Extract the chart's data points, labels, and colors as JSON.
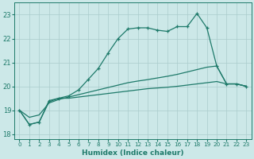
{
  "xlabel": "Humidex (Indice chaleur)",
  "bg_color": "#cce8e8",
  "grid_color": "#aacccc",
  "line_color": "#1e7a6a",
  "xlim": [
    -0.5,
    23.5
  ],
  "ylim": [
    17.8,
    23.5
  ],
  "yticks": [
    18,
    19,
    20,
    21,
    22,
    23
  ],
  "xticks": [
    0,
    1,
    2,
    3,
    4,
    5,
    6,
    7,
    8,
    9,
    10,
    11,
    12,
    13,
    14,
    15,
    16,
    17,
    18,
    19,
    20,
    21,
    22,
    23
  ],
  "curve_x": [
    0,
    1,
    2,
    3,
    4,
    5,
    6,
    7,
    8,
    9,
    10,
    11,
    12,
    13,
    14,
    15,
    16,
    17,
    18,
    19,
    20,
    21,
    22,
    23
  ],
  "curve_y": [
    19.0,
    18.4,
    18.5,
    19.4,
    19.5,
    19.6,
    19.85,
    20.3,
    20.75,
    21.4,
    22.0,
    22.4,
    22.45,
    22.45,
    22.35,
    22.3,
    22.5,
    22.5,
    23.05,
    22.45,
    20.85,
    20.1,
    20.1,
    20.0
  ],
  "diag_x": [
    0,
    1,
    2,
    3,
    4,
    5,
    6,
    7,
    8,
    9,
    10,
    11,
    12,
    13,
    14,
    15,
    16,
    17,
    18,
    19,
    20,
    21,
    22,
    23
  ],
  "diag_y": [
    19.0,
    18.7,
    18.8,
    19.3,
    19.45,
    19.55,
    19.65,
    19.75,
    19.85,
    19.95,
    20.05,
    20.15,
    20.22,
    20.28,
    20.35,
    20.42,
    20.5,
    20.6,
    20.7,
    20.8,
    20.85,
    20.1,
    20.1,
    20.0
  ],
  "flat_x": [
    0,
    1,
    2,
    3,
    4,
    5,
    6,
    7,
    8,
    9,
    10,
    11,
    12,
    13,
    14,
    15,
    16,
    17,
    18,
    19,
    20,
    21,
    22,
    23
  ],
  "flat_y": [
    19.0,
    18.4,
    18.5,
    19.35,
    19.5,
    19.5,
    19.55,
    19.6,
    19.65,
    19.7,
    19.75,
    19.8,
    19.85,
    19.9,
    19.93,
    19.96,
    20.0,
    20.05,
    20.1,
    20.15,
    20.2,
    20.1,
    20.1,
    20.0
  ]
}
